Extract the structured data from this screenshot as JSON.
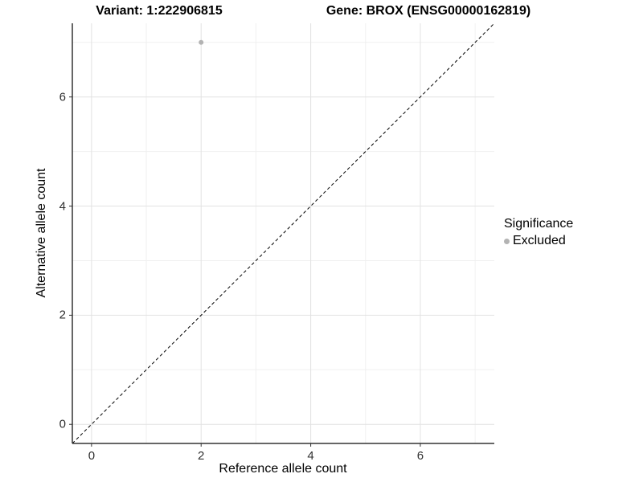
{
  "chart_data": {
    "type": "scatter",
    "title_variant": "Variant: 1:222906815",
    "title_gene": "Gene: BROX (ENSG00000162819)",
    "xlabel": "Reference allele count",
    "ylabel": "Alternative allele count",
    "xlim": [
      -0.35,
      7.35
    ],
    "ylim": [
      -0.35,
      7.35
    ],
    "x_major_ticks": [
      0,
      2,
      4,
      6
    ],
    "y_major_ticks": [
      0,
      2,
      4,
      6
    ],
    "x_minor_ticks": [
      1,
      3,
      5,
      7
    ],
    "y_minor_ticks": [
      1,
      3,
      5,
      7
    ],
    "grid": true,
    "series": [
      {
        "name": "Excluded",
        "color": "#b3b3b3",
        "points": [
          {
            "x": 2,
            "y": 7
          }
        ]
      }
    ],
    "reference_line": {
      "type": "identity",
      "slope": 1,
      "intercept": 0,
      "style": "dashed",
      "color": "#000000"
    },
    "legend": {
      "title": "Significance",
      "position": "right",
      "entries": [
        {
          "label": "Excluded",
          "color": "#b3b3b3"
        }
      ]
    },
    "colors": {
      "axis_line": "#333333",
      "tick_mark": "#333333",
      "tick_label": "#303030",
      "grid_major": "#e2e2e2",
      "grid_minor": "#f0f0f0",
      "background": "#ffffff"
    }
  }
}
